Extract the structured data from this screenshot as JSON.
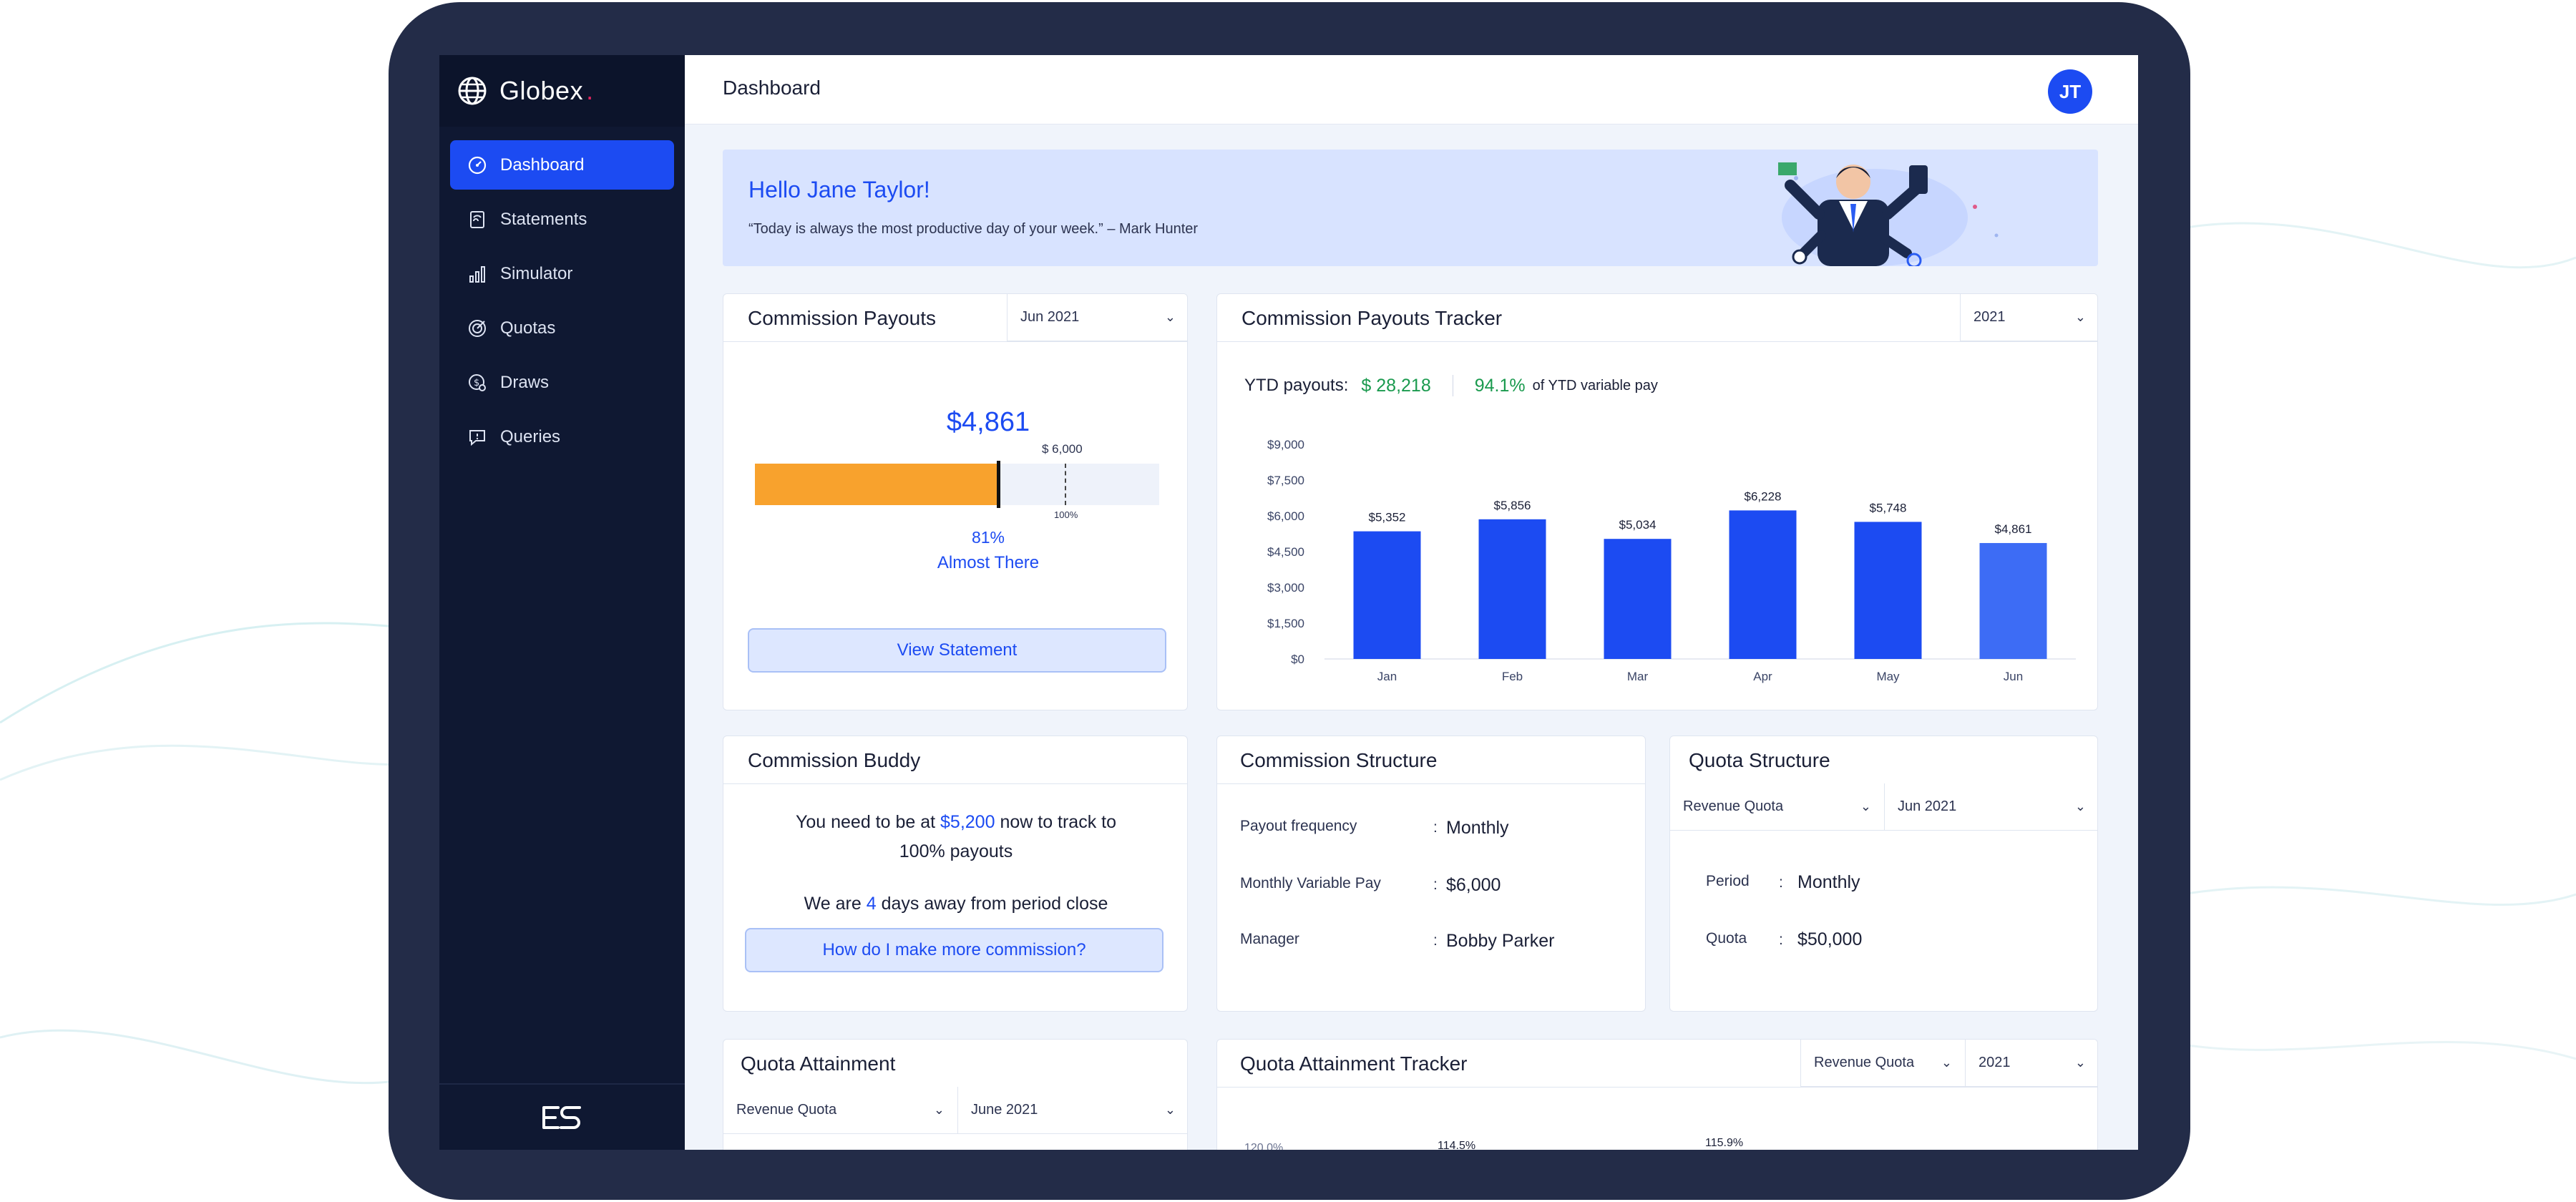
{
  "app": {
    "brand": "Globex",
    "brand_dot": ".",
    "page_title": "Dashboard",
    "avatar_initials": "JT"
  },
  "sidebar": {
    "items": [
      {
        "label": "Dashboard",
        "icon": "dashboard-icon",
        "active": true
      },
      {
        "label": "Statements",
        "icon": "statements-icon",
        "active": false
      },
      {
        "label": "Simulator",
        "icon": "simulator-icon",
        "active": false
      },
      {
        "label": "Quotas",
        "icon": "quotas-icon",
        "active": false
      },
      {
        "label": "Draws",
        "icon": "draws-icon",
        "active": false
      },
      {
        "label": "Queries",
        "icon": "queries-icon",
        "active": false
      }
    ],
    "footer_logo": "ES"
  },
  "banner": {
    "greeting": "Hello Jane Taylor!",
    "quote": "“Today is always the most productive day of your week.” – Mark Hunter"
  },
  "commission_payouts": {
    "title": "Commission Payouts",
    "period": "Jun 2021",
    "amount": "$4,861",
    "target_label": "$ 6,000",
    "hundred_label": "100%",
    "percent": "81%",
    "progress_fraction": 0.81,
    "status": "Almost There",
    "button": "View Statement"
  },
  "tracker": {
    "title": "Commission Payouts Tracker",
    "year": "2021",
    "ytd_label": "YTD payouts:",
    "ytd_value": "$ 28,218",
    "ytd_pct": "94.1%",
    "ytd_pct_suffix": "of YTD variable pay"
  },
  "chart_data": {
    "type": "bar",
    "title": "Commission Payouts Tracker",
    "categories": [
      "Jan",
      "Feb",
      "Mar",
      "Apr",
      "May",
      "Jun"
    ],
    "values": [
      5352,
      5856,
      5034,
      6228,
      5748,
      4861
    ],
    "value_labels": [
      "$5,352",
      "$5,856",
      "$5,034",
      "$6,228",
      "$5,748",
      "$4,861"
    ],
    "yticks": [
      0,
      1500,
      3000,
      4500,
      6000,
      7500,
      9000
    ],
    "ytick_labels": [
      "$0",
      "$1,500",
      "$3,000",
      "$4,500",
      "$6,000",
      "$7,500",
      "$9,000"
    ],
    "ylim": [
      0,
      9000
    ],
    "xlabel": "",
    "ylabel": "",
    "colors": [
      "#1c4bf2",
      "#1c4bf2",
      "#1c4bf2",
      "#1c4bf2",
      "#1c4bf2",
      "#3d6cf5"
    ]
  },
  "buddy": {
    "title": "Commission Buddy",
    "line1_pre": "You need to be at",
    "line1_amount": "$5,200",
    "line1_post": "now to track to",
    "line2": "100% payouts",
    "line3_pre": "We are",
    "line3_days": "4",
    "line3_post": "days away from period close",
    "button": "How do I make more commission?"
  },
  "structure": {
    "title": "Commission Structure",
    "rows": [
      {
        "label": "Payout frequency",
        "value": "Monthly"
      },
      {
        "label": "Monthly Variable Pay",
        "value": "$6,000"
      },
      {
        "label": "Manager",
        "value": "Bobby Parker"
      }
    ],
    "colon": ":"
  },
  "quota_structure": {
    "title": "Quota Structure",
    "quota_select": "Revenue Quota",
    "period_select": "Jun 2021",
    "rows": [
      {
        "label": "Period",
        "value": "Monthly"
      },
      {
        "label": "Quota",
        "value": "$50,000"
      }
    ]
  },
  "quota_attainment": {
    "title": "Quota Attainment",
    "quota_select": "Revenue Quota",
    "period_select": "June 2021"
  },
  "quota_tracker": {
    "title": "Quota Attainment Tracker",
    "quota_select": "Revenue Quota",
    "year": "2021",
    "partial_labels": [
      "120.0%",
      "114.5%",
      "115.9%"
    ]
  },
  "colors": {
    "accent": "#1c4bf2",
    "progress": "#f8a22d",
    "success": "#1a9a4e",
    "sidebar_bg": "#0f1832",
    "frame": "#232c48"
  }
}
